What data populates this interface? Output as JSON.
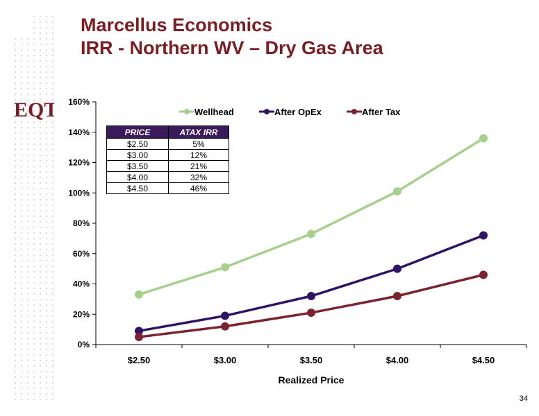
{
  "title": {
    "line1": "Marcellus Economics",
    "line2": "IRR - Northern WV – Dry Gas Area"
  },
  "logo": {
    "text": "EQT"
  },
  "page_number": "34",
  "colors": {
    "title": "#7a1e24",
    "wellhead": "#a8d08d",
    "after_opex": "#2e1366",
    "after_tax": "#7b2430",
    "table_header": "#3b1a5c"
  },
  "table": {
    "headers": [
      "PRICE",
      "ATAX IRR"
    ],
    "rows": [
      [
        "$2.50",
        "5%"
      ],
      [
        "$3.00",
        "12%"
      ],
      [
        "$3.50",
        "21%"
      ],
      [
        "$4.00",
        "32%"
      ],
      [
        "$4.50",
        "46%"
      ]
    ]
  },
  "chart_data": {
    "type": "line",
    "title": "",
    "xlabel": "Realized Price",
    "ylabel": "",
    "categories": [
      "$2.50",
      "$3.00",
      "$3.50",
      "$4.00",
      "$4.50"
    ],
    "ylim": [
      0,
      160
    ],
    "yticks": [
      0,
      20,
      40,
      60,
      80,
      100,
      120,
      140,
      160
    ],
    "ytick_labels": [
      "0%",
      "20%",
      "40%",
      "60%",
      "80%",
      "100%",
      "120%",
      "140%",
      "160%"
    ],
    "grid": false,
    "legend": "top",
    "series": [
      {
        "name": "Wellhead",
        "color": "#a8d08d",
        "values": [
          33,
          51,
          73,
          101,
          136
        ]
      },
      {
        "name": "After OpEx",
        "color": "#2e1366",
        "values": [
          9,
          19,
          32,
          50,
          72
        ]
      },
      {
        "name": "After Tax",
        "color": "#7b2430",
        "values": [
          5,
          12,
          21,
          32,
          46
        ]
      }
    ]
  }
}
